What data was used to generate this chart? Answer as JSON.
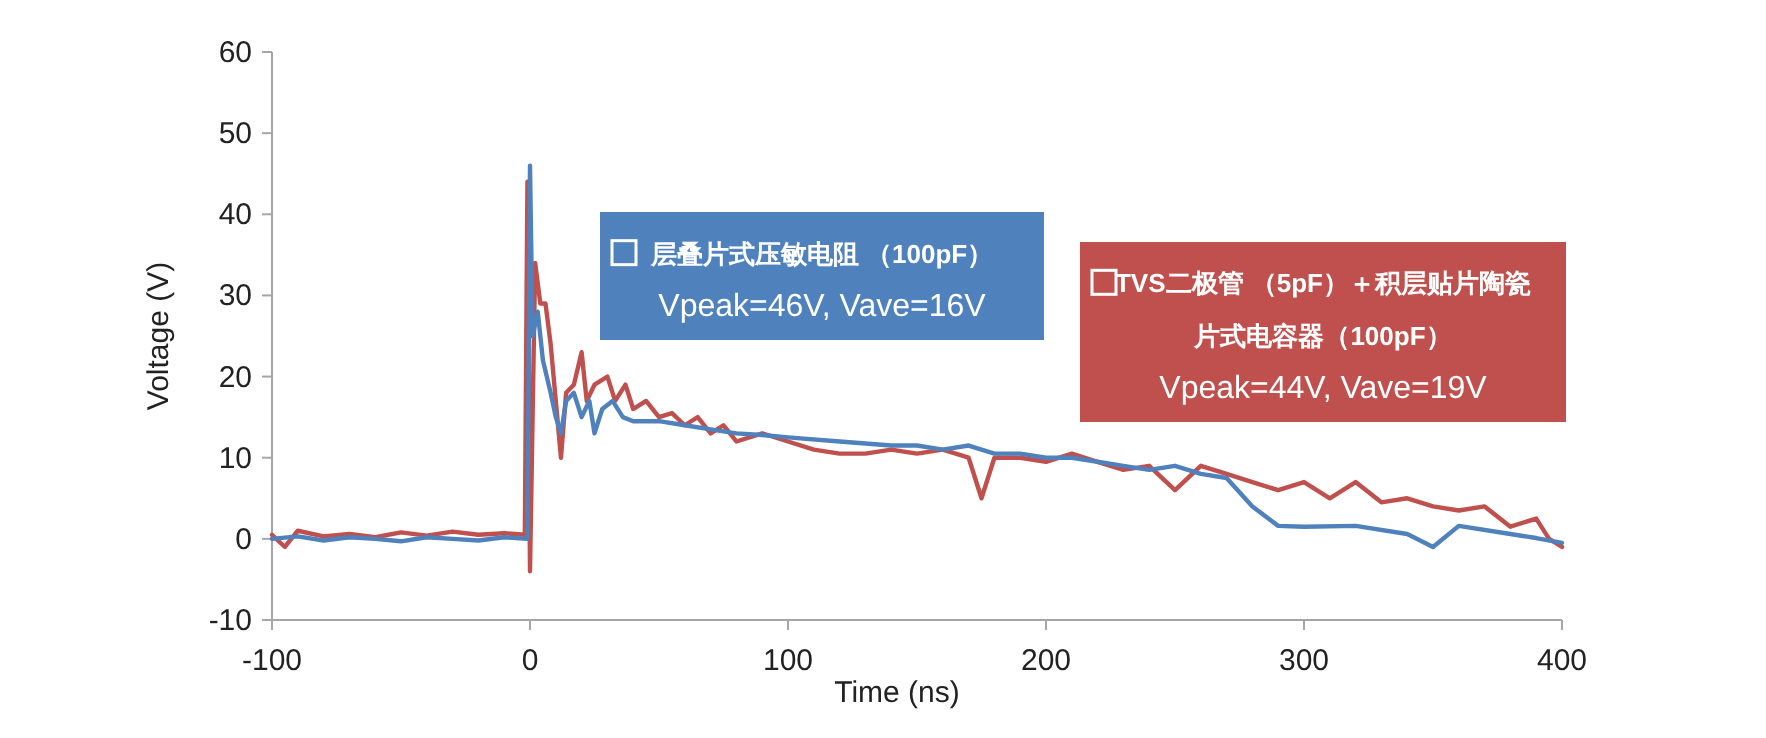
{
  "chart_data": {
    "type": "line",
    "xlabel": "Time (ns)",
    "ylabel": "Voltage (V)",
    "xlim": [
      -100,
      400
    ],
    "ylim": [
      -10,
      60
    ],
    "xticks": [
      -100,
      0,
      100,
      200,
      300,
      400
    ],
    "yticks": [
      -10,
      0,
      10,
      20,
      30,
      40,
      50,
      60
    ],
    "grid": false,
    "legend": "top right",
    "marker": "none",
    "line_style": "solid",
    "annotations": [
      "Vpeak=46V, Vave=16V",
      "Vpeak=44V, Vave=19V"
    ],
    "series": [
      {
        "name": "层叠片式压敏电阻 （100pF）",
        "color": "#4f81bd",
        "x": [
          -100,
          -90,
          -80,
          -70,
          -60,
          -50,
          -40,
          -30,
          -20,
          -10,
          -1,
          0,
          1,
          3,
          5,
          8,
          10,
          12,
          14,
          17,
          20,
          23,
          25,
          28,
          32,
          36,
          40,
          50,
          60,
          70,
          80,
          90,
          100,
          120,
          140,
          150,
          160,
          170,
          180,
          190,
          200,
          210,
          220,
          230,
          240,
          250,
          260,
          270,
          280,
          290,
          300,
          320,
          340,
          350,
          360,
          380,
          390,
          400
        ],
        "values": [
          0,
          0.3,
          -0.2,
          0.2,
          0,
          -0.3,
          0.2,
          0,
          -0.2,
          0.2,
          0,
          46,
          25,
          28,
          22,
          18,
          15,
          13,
          17,
          18,
          15,
          17,
          13,
          16,
          17,
          15,
          14.5,
          14.5,
          14,
          13.5,
          13,
          12.8,
          12.5,
          12,
          11.5,
          11.5,
          11,
          11.5,
          10.5,
          10.5,
          10,
          10,
          9.5,
          9,
          8.5,
          9,
          8,
          7.5,
          4,
          1.6,
          1.5,
          1.6,
          0.6,
          -1,
          1.6,
          0.6,
          0.1,
          -0.5
        ]
      },
      {
        "name": "TVS二极管 （5pF）＋积层贴片陶瓷片式电容器（100pF）",
        "color": "#c0504d",
        "x": [
          -100,
          -95,
          -90,
          -80,
          -70,
          -60,
          -50,
          -40,
          -30,
          -20,
          -10,
          -2,
          -1,
          0,
          2,
          4,
          6,
          8,
          10,
          12,
          14,
          17,
          20,
          22,
          25,
          30,
          33,
          37,
          40,
          45,
          50,
          55,
          60,
          65,
          70,
          75,
          80,
          90,
          100,
          110,
          120,
          130,
          140,
          150,
          160,
          170,
          175,
          180,
          190,
          200,
          210,
          220,
          230,
          240,
          250,
          260,
          270,
          280,
          290,
          300,
          310,
          320,
          330,
          340,
          350,
          360,
          370,
          380,
          390,
          395,
          400
        ],
        "values": [
          0.5,
          -1,
          1,
          0.3,
          0.6,
          0.2,
          0.8,
          0.4,
          0.9,
          0.5,
          0.7,
          0.5,
          44,
          -4,
          34,
          29,
          29,
          24,
          17,
          10,
          18,
          19,
          23,
          17,
          19,
          20,
          17,
          19,
          16,
          17,
          15,
          15.5,
          14,
          15,
          13,
          14,
          12,
          13,
          12,
          11,
          10.5,
          10.5,
          11,
          10.5,
          11,
          10,
          5,
          10,
          10,
          9.5,
          10.5,
          9.5,
          8.5,
          9,
          6,
          9,
          8,
          7,
          6,
          7,
          5,
          7,
          4.5,
          5,
          4,
          3.5,
          4,
          1.5,
          2.5,
          0,
          -1
        ]
      }
    ]
  }
}
